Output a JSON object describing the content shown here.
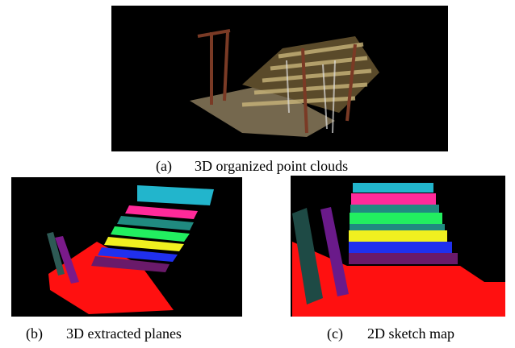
{
  "figures": [
    {
      "label": "(a)",
      "caption": "3D organized point clouds"
    },
    {
      "label": "(b)",
      "caption": "3D extracted planes"
    },
    {
      "label": "(c)",
      "caption": "2D sketch map"
    }
  ]
}
